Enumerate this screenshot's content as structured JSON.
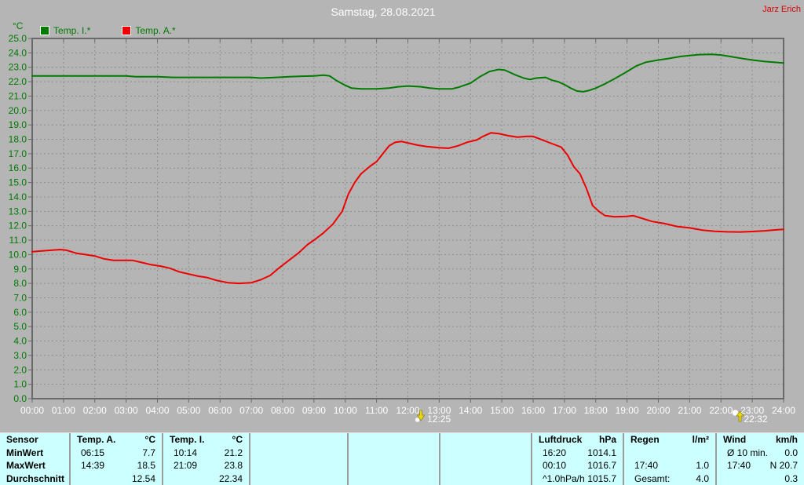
{
  "header": {
    "title": "Samstag, 28.08.2021",
    "user": "Jarz Erich"
  },
  "legend": {
    "unit": "°C",
    "items": [
      {
        "label": "Temp. I.*",
        "color": "#007b00"
      },
      {
        "label": "Temp. A.*",
        "color": "#ee0000"
      }
    ]
  },
  "chart_data": {
    "type": "line",
    "title": "Samstag, 28.08.2021",
    "ylabel": "°C",
    "y_axis": {
      "min": 0,
      "max": 25,
      "step": 1,
      "label_format": "x.0"
    },
    "x_axis": {
      "min": 0,
      "max": 24,
      "step": 1,
      "labels": [
        "00:00",
        "01:00",
        "02:00",
        "03:00",
        "04:00",
        "05:00",
        "06:00",
        "07:00",
        "08:00",
        "09:00",
        "10:00",
        "11:00",
        "12:00",
        "13:00",
        "14:00",
        "15:00",
        "16:00",
        "17:00",
        "18:00",
        "19:00",
        "20:00",
        "21:00",
        "22:00",
        "23:00",
        "24:00"
      ]
    },
    "grid": true,
    "colors": {
      "background": "#b5b5b5",
      "grid": "#8e8e8e",
      "axis": "#696969",
      "x_label": "#ffffff",
      "y_label": "#007b00"
    },
    "series": [
      {
        "name": "Temp. I.*",
        "color": "#007b00",
        "points": [
          [
            0,
            22.4
          ],
          [
            0.5,
            22.4
          ],
          [
            1,
            22.4
          ],
          [
            1.5,
            22.4
          ],
          [
            2,
            22.4
          ],
          [
            2.5,
            22.4
          ],
          [
            3,
            22.4
          ],
          [
            3.3,
            22.35
          ],
          [
            4,
            22.35
          ],
          [
            4.5,
            22.3
          ],
          [
            5,
            22.3
          ],
          [
            5.5,
            22.3
          ],
          [
            6,
            22.3
          ],
          [
            6.5,
            22.3
          ],
          [
            7,
            22.3
          ],
          [
            7.3,
            22.25
          ],
          [
            7.8,
            22.3
          ],
          [
            8.2,
            22.35
          ],
          [
            9,
            22.4
          ],
          [
            9.3,
            22.45
          ],
          [
            9.5,
            22.4
          ],
          [
            9.7,
            22.1
          ],
          [
            10,
            21.75
          ],
          [
            10.2,
            21.55
          ],
          [
            10.5,
            21.5
          ],
          [
            11,
            21.5
          ],
          [
            11.4,
            21.55
          ],
          [
            11.7,
            21.65
          ],
          [
            12,
            21.7
          ],
          [
            12.4,
            21.65
          ],
          [
            12.7,
            21.55
          ],
          [
            13,
            21.5
          ],
          [
            13.4,
            21.5
          ],
          [
            13.6,
            21.6
          ],
          [
            13.8,
            21.75
          ],
          [
            14,
            21.9
          ],
          [
            14.3,
            22.35
          ],
          [
            14.6,
            22.7
          ],
          [
            14.9,
            22.85
          ],
          [
            15.1,
            22.8
          ],
          [
            15.4,
            22.5
          ],
          [
            15.7,
            22.25
          ],
          [
            15.9,
            22.15
          ],
          [
            16.1,
            22.25
          ],
          [
            16.4,
            22.3
          ],
          [
            16.6,
            22.1
          ],
          [
            16.8,
            22.0
          ],
          [
            17,
            21.8
          ],
          [
            17.2,
            21.55
          ],
          [
            17.4,
            21.35
          ],
          [
            17.6,
            21.3
          ],
          [
            17.8,
            21.4
          ],
          [
            18,
            21.55
          ],
          [
            18.3,
            21.85
          ],
          [
            18.6,
            22.2
          ],
          [
            19,
            22.7
          ],
          [
            19.3,
            23.1
          ],
          [
            19.6,
            23.35
          ],
          [
            20,
            23.5
          ],
          [
            20.3,
            23.6
          ],
          [
            20.7,
            23.75
          ],
          [
            21,
            23.82
          ],
          [
            21.3,
            23.88
          ],
          [
            21.7,
            23.9
          ],
          [
            22,
            23.85
          ],
          [
            22.3,
            23.75
          ],
          [
            22.7,
            23.6
          ],
          [
            23,
            23.5
          ],
          [
            23.4,
            23.4
          ],
          [
            24,
            23.3
          ]
        ]
      },
      {
        "name": "Temp. A.*",
        "color": "#ee0000",
        "points": [
          [
            0,
            10.2
          ],
          [
            0.3,
            10.25
          ],
          [
            0.6,
            10.3
          ],
          [
            0.9,
            10.35
          ],
          [
            1.1,
            10.3
          ],
          [
            1.4,
            10.1
          ],
          [
            1.7,
            10.0
          ],
          [
            2,
            9.9
          ],
          [
            2.3,
            9.7
          ],
          [
            2.6,
            9.6
          ],
          [
            3,
            9.6
          ],
          [
            3.2,
            9.6
          ],
          [
            3.5,
            9.45
          ],
          [
            3.8,
            9.3
          ],
          [
            4.1,
            9.2
          ],
          [
            4.4,
            9.05
          ],
          [
            4.7,
            8.8
          ],
          [
            5,
            8.65
          ],
          [
            5.3,
            8.5
          ],
          [
            5.6,
            8.4
          ],
          [
            5.9,
            8.2
          ],
          [
            6.25,
            8.05
          ],
          [
            6.6,
            8.0
          ],
          [
            7,
            8.05
          ],
          [
            7.3,
            8.25
          ],
          [
            7.6,
            8.55
          ],
          [
            7.9,
            9.1
          ],
          [
            8.2,
            9.6
          ],
          [
            8.5,
            10.1
          ],
          [
            8.8,
            10.7
          ],
          [
            9,
            11.0
          ],
          [
            9.3,
            11.5
          ],
          [
            9.6,
            12.1
          ],
          [
            9.9,
            13.0
          ],
          [
            10.1,
            14.2
          ],
          [
            10.3,
            15.0
          ],
          [
            10.5,
            15.6
          ],
          [
            10.8,
            16.15
          ],
          [
            11,
            16.45
          ],
          [
            11.2,
            17.0
          ],
          [
            11.4,
            17.55
          ],
          [
            11.6,
            17.8
          ],
          [
            11.8,
            17.85
          ],
          [
            12,
            17.75
          ],
          [
            12.3,
            17.6
          ],
          [
            12.6,
            17.5
          ],
          [
            13,
            17.42
          ],
          [
            13.3,
            17.38
          ],
          [
            13.6,
            17.55
          ],
          [
            13.9,
            17.8
          ],
          [
            14.2,
            17.95
          ],
          [
            14.4,
            18.2
          ],
          [
            14.65,
            18.45
          ],
          [
            14.9,
            18.4
          ],
          [
            15.2,
            18.25
          ],
          [
            15.5,
            18.15
          ],
          [
            15.8,
            18.2
          ],
          [
            16,
            18.2
          ],
          [
            16.3,
            17.95
          ],
          [
            16.6,
            17.7
          ],
          [
            16.9,
            17.45
          ],
          [
            17.1,
            16.9
          ],
          [
            17.3,
            16.1
          ],
          [
            17.5,
            15.6
          ],
          [
            17.7,
            14.6
          ],
          [
            17.9,
            13.4
          ],
          [
            18.1,
            13.0
          ],
          [
            18.3,
            12.7
          ],
          [
            18.6,
            12.62
          ],
          [
            19,
            12.65
          ],
          [
            19.2,
            12.7
          ],
          [
            19.5,
            12.5
          ],
          [
            19.8,
            12.3
          ],
          [
            20.2,
            12.15
          ],
          [
            20.6,
            11.95
          ],
          [
            21,
            11.85
          ],
          [
            21.4,
            11.7
          ],
          [
            21.8,
            11.62
          ],
          [
            22.2,
            11.58
          ],
          [
            22.6,
            11.57
          ],
          [
            23,
            11.6
          ],
          [
            23.4,
            11.65
          ],
          [
            23.8,
            11.72
          ],
          [
            24,
            11.75
          ]
        ]
      }
    ],
    "markers": [
      {
        "time": "12:25",
        "hour": 12.4167,
        "type": "moonset"
      },
      {
        "time": "22:32",
        "hour": 22.5333,
        "type": "moonrise"
      }
    ]
  },
  "table": {
    "row_labels": [
      "Sensor",
      "MinWert",
      "MaxWert",
      "Durchschnitt"
    ],
    "columns": [
      {
        "name": "Temp. A.",
        "unit": "°C",
        "rows": [
          [
            "06:15",
            "7.7"
          ],
          [
            "14:39",
            "18.5"
          ],
          [
            "",
            "12.54"
          ]
        ]
      },
      {
        "name": "Temp. I.",
        "unit": "°C",
        "rows": [
          [
            "10:14",
            "21.2"
          ],
          [
            "21:09",
            "23.8"
          ],
          [
            "",
            "22.34"
          ]
        ]
      },
      {
        "name": "",
        "unit": "",
        "rows": [
          [
            "",
            ""
          ],
          [
            "",
            ""
          ],
          [
            "",
            ""
          ]
        ]
      },
      {
        "name": "",
        "unit": "",
        "rows": [
          [
            "",
            ""
          ],
          [
            "",
            ""
          ],
          [
            "",
            ""
          ]
        ]
      },
      {
        "name": "",
        "unit": "",
        "rows": [
          [
            "",
            ""
          ],
          [
            "",
            ""
          ],
          [
            "",
            ""
          ]
        ]
      },
      {
        "name": "Luftdruck",
        "unit": "hPa",
        "rows": [
          [
            "16:20",
            "1014.1"
          ],
          [
            "00:10",
            "1016.7"
          ],
          [
            "^1.0hPa/h",
            "1015.7"
          ]
        ]
      },
      {
        "name": "Regen",
        "unit": "l/m²",
        "rows": [
          [
            "",
            ""
          ],
          [
            "17:40",
            "1.0"
          ],
          [
            "Gesamt:",
            "4.0"
          ]
        ]
      },
      {
        "name": "Wind",
        "unit": "km/h",
        "rows": [
          [
            "Ø 10 min.",
            "0.0"
          ],
          [
            "17:40",
            "N 20.7"
          ],
          [
            "",
            "0.3"
          ]
        ]
      }
    ]
  }
}
